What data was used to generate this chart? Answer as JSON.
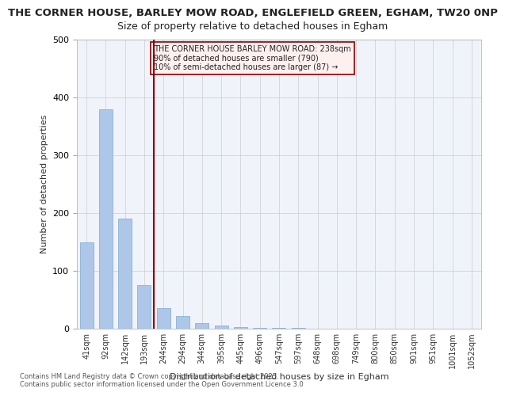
{
  "title": "THE CORNER HOUSE, BARLEY MOW ROAD, ENGLEFIELD GREEN, EGHAM, TW20 0NP",
  "subtitle": "Size of property relative to detached houses in Egham",
  "xlabel": "Distribution of detached houses by size in Egham",
  "ylabel": "Number of detached properties",
  "categories": [
    "41sqm",
    "92sqm",
    "142sqm",
    "193sqm",
    "244sqm",
    "294sqm",
    "344sqm",
    "395sqm",
    "445sqm",
    "496sqm",
    "547sqm",
    "597sqm",
    "648sqm",
    "698sqm",
    "749sqm",
    "800sqm",
    "850sqm",
    "901sqm",
    "951sqm",
    "1001sqm",
    "1052sqm"
  ],
  "values": [
    150,
    380,
    190,
    75,
    35,
    22,
    10,
    5,
    3,
    2,
    1,
    1,
    0,
    0,
    0,
    0,
    0,
    0,
    0,
    0,
    0
  ],
  "bar_color": "#aec6e8",
  "highlight_bar_index": 3,
  "highlight_bar_color": "#aec6e8",
  "vline_x": 3.5,
  "vline_color": "#8b0000",
  "annotation_text": "THE CORNER HOUSE BARLEY MOW ROAD: 238sqm\n90% of detached houses are smaller (790)\n10% of semi-detached houses are larger (87) →",
  "annotation_box_color": "#fff0f0",
  "annotation_border_color": "#8b0000",
  "footer1": "Contains HM Land Registry data © Crown copyright and database right 2025.",
  "footer2": "Contains public sector information licensed under the Open Government Licence 3.0",
  "ylim": [
    0,
    500
  ],
  "background_color": "#f0f4fa",
  "grid_color": "#cccccc",
  "title_fontsize": 9.5,
  "subtitle_fontsize": 9
}
